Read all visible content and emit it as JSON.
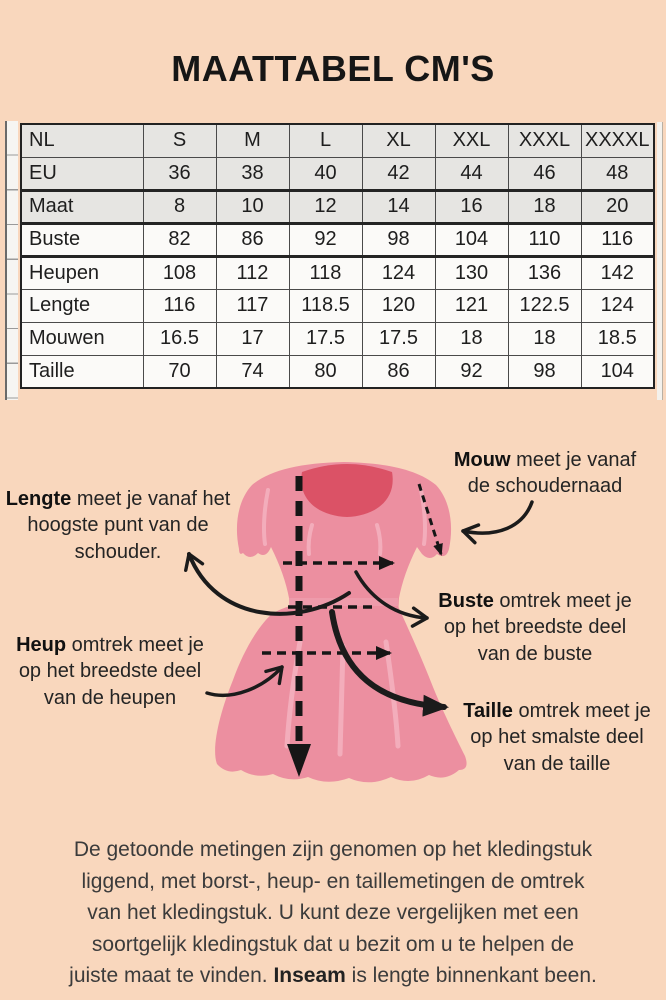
{
  "title": "MAATTABEL CM'S",
  "table": {
    "rows": [
      {
        "label": "NL",
        "values": [
          "S",
          "M",
          "L",
          "XL",
          "XXL",
          "XXXL",
          "XXXXL"
        ]
      },
      {
        "label": "EU",
        "values": [
          "36",
          "38",
          "40",
          "42",
          "44",
          "46",
          "48"
        ]
      },
      {
        "label": "Maat",
        "values": [
          "8",
          "10",
          "12",
          "14",
          "16",
          "18",
          "20"
        ]
      },
      {
        "label": "Buste",
        "values": [
          "82",
          "86",
          "92",
          "98",
          "104",
          "110",
          "116"
        ]
      },
      {
        "label": "Heupen",
        "values": [
          "108",
          "112",
          "118",
          "124",
          "130",
          "136",
          "142"
        ]
      },
      {
        "label": "Lengte",
        "values": [
          "116",
          "117",
          "118.5",
          "120",
          "121",
          "122.5",
          "124"
        ]
      },
      {
        "label": "Mouwen",
        "values": [
          "16.5",
          "17",
          "17.5",
          "17.5",
          "18",
          "18",
          "18.5"
        ]
      },
      {
        "label": "Taille",
        "values": [
          "70",
          "74",
          "80",
          "86",
          "92",
          "98",
          "104"
        ]
      }
    ]
  },
  "diagram": {
    "labels": [
      {
        "id": "lengte",
        "lead": "Lengte",
        "rest": " meet je vanaf het\nhoogste punt van de\nschouder."
      },
      {
        "id": "mouw",
        "lead": "Mouw",
        "rest": " meet je vanaf\nde schoudernaad"
      },
      {
        "id": "buste",
        "lead": "Buste",
        "rest": " omtrek meet je\nop het breedste deel\nvan de buste"
      },
      {
        "id": "heup",
        "lead": "Heup",
        "rest": " omtrek meet je\nop het breedste deel\nvan de heupen"
      },
      {
        "id": "taille",
        "lead": "Taille",
        "rest": " omtrek meet je\nop het smalste deel\nvan de taille"
      }
    ]
  },
  "footnote": {
    "before": "De getoonde metingen zijn genomen op het kledingstuk\nliggend, met borst-, heup- en taillemetingen de omtrek\nvan het kledingstuk. U kunt deze vergelijken met een\nsoortgelijk kledingstuk dat u bezit om u te helpen de\njuiste maat te vinden. ",
    "bold": "Inseam",
    "after": " is lengte binnenkant been."
  },
  "colors": {
    "background": "#f9d7bd",
    "dress_pink": "#ec8fa0",
    "dress_neckline": "#db5266",
    "dress_waistband": "#f1a6b4",
    "dress_fold": "#f5b3c0",
    "arrow_black": "#1b1b1b",
    "table_shaded_row": "#e6e5e2",
    "table_plain_row": "#fbfaf8"
  }
}
